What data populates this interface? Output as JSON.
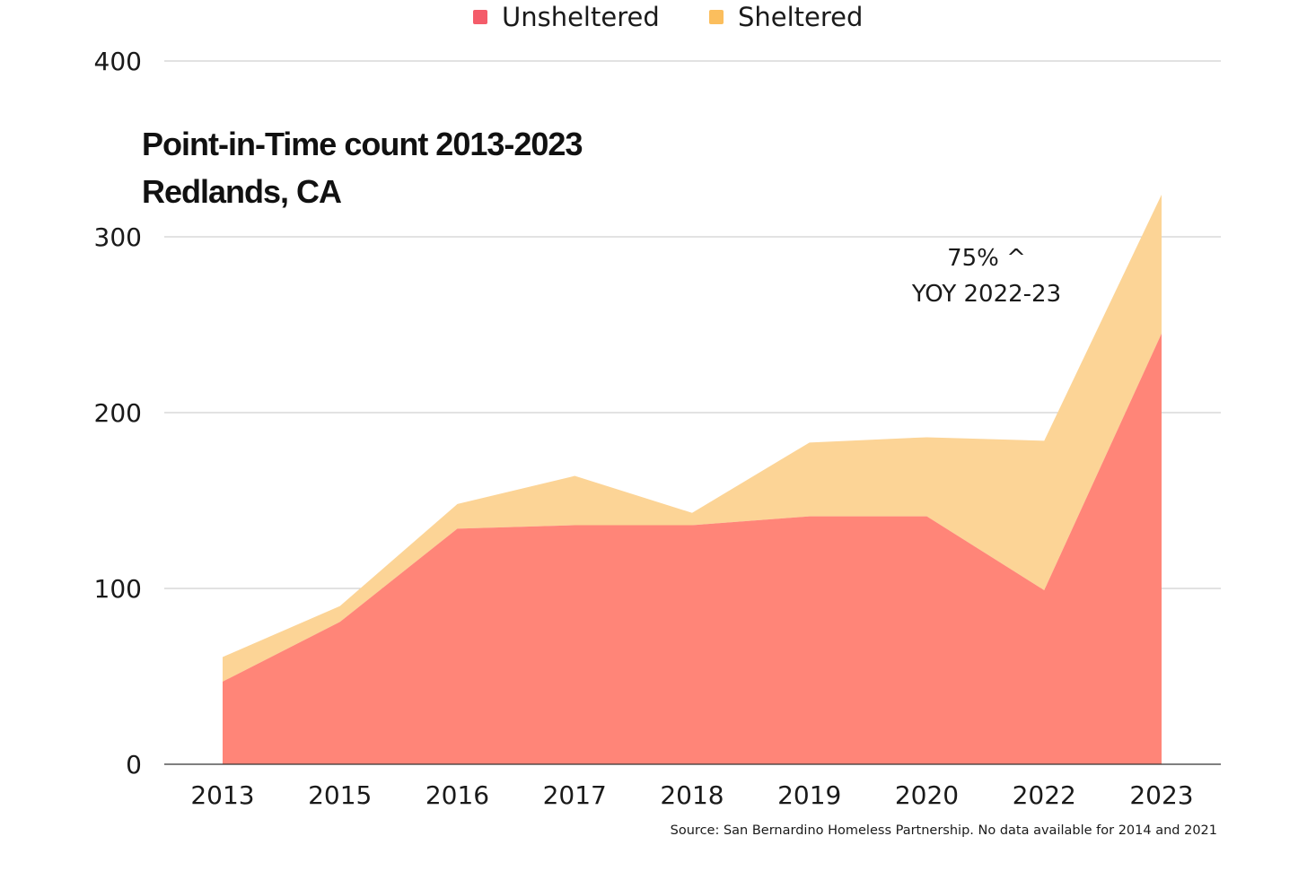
{
  "legend": {
    "unsheltered_label": "Unsheltered",
    "sheltered_label": "Sheltered"
  },
  "title": {
    "line1": "Point-in-Time count 2013-2023",
    "line2": "Redlands, CA"
  },
  "annotation": {
    "line1": "75% ^",
    "line2": "YOY 2022-23"
  },
  "source": "Source: San Bernardino Homeless Partnership. No data available for 2014 and 2021",
  "colors": {
    "unsheltered": "#ff8578",
    "sheltered": "#fcd496",
    "unsheltered_swatch": "#f45c6a",
    "sheltered_swatch": "#fbbe5d",
    "gridline": "#c4c4c4",
    "axis": "#333333"
  },
  "chart_data": {
    "type": "area",
    "stacked": true,
    "categories": [
      "2013",
      "2015",
      "2016",
      "2017",
      "2018",
      "2019",
      "2020",
      "2022",
      "2023"
    ],
    "series": [
      {
        "name": "Unsheltered",
        "values": [
          47,
          81,
          134,
          136,
          136,
          141,
          141,
          99,
          245
        ]
      },
      {
        "name": "Sheltered",
        "values": [
          14,
          9,
          14,
          28,
          7,
          42,
          45,
          85,
          79
        ]
      }
    ],
    "ylim": [
      0,
      400
    ],
    "yticks": [
      0,
      100,
      200,
      300,
      400
    ],
    "grid": true,
    "legend": "top-center"
  }
}
